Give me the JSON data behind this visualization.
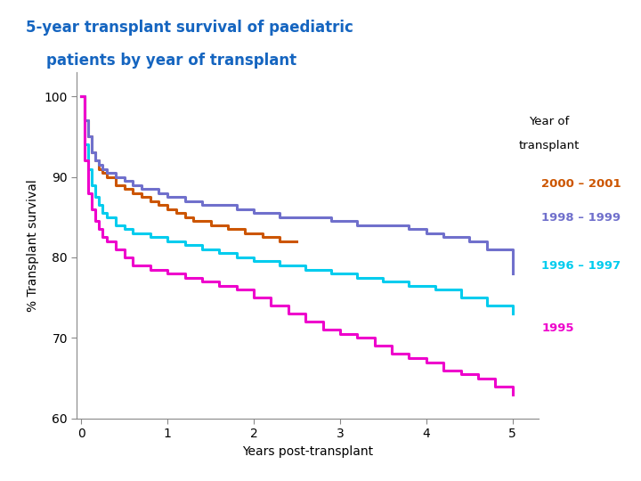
{
  "title_line1": "5-year transplant survival of paediatric",
  "title_line2": "    patients by year of transplant",
  "xlabel": "Years post-transplant",
  "ylabel": "% Transplant survival",
  "xlim": [
    -0.05,
    5.3
  ],
  "ylim": [
    60,
    103
  ],
  "yticks": [
    60,
    70,
    80,
    90,
    100
  ],
  "xticks": [
    0,
    1,
    2,
    3,
    4,
    5
  ],
  "title_color": "#1565C0",
  "background_color": "#ffffff",
  "navy_bar_color": "#2B3A8A",
  "legend_title": "Year of\ntransplant",
  "series": [
    {
      "label": "2000 – 2001",
      "color": "#cc5500",
      "x": [
        0,
        0.04,
        0.08,
        0.12,
        0.16,
        0.2,
        0.25,
        0.3,
        0.4,
        0.5,
        0.6,
        0.7,
        0.8,
        0.9,
        1.0,
        1.1,
        1.2,
        1.3,
        1.5,
        1.7,
        1.9,
        2.1,
        2.3,
        2.5
      ],
      "y": [
        100,
        97,
        95,
        93,
        92,
        91,
        90.5,
        90,
        89,
        88.5,
        88,
        87.5,
        87,
        86.5,
        86,
        85.5,
        85,
        84.5,
        84,
        83.5,
        83,
        82.5,
        82,
        82
      ]
    },
    {
      "label": "1998 – 1999",
      "color": "#7070CC",
      "x": [
        0,
        0.04,
        0.08,
        0.12,
        0.16,
        0.2,
        0.25,
        0.3,
        0.4,
        0.5,
        0.6,
        0.7,
        0.8,
        0.9,
        1.0,
        1.2,
        1.4,
        1.6,
        1.8,
        2.0,
        2.3,
        2.6,
        2.9,
        3.2,
        3.5,
        3.8,
        4.0,
        4.2,
        4.5,
        4.7,
        5.0
      ],
      "y": [
        100,
        97,
        95,
        93,
        92,
        91.5,
        91,
        90.5,
        90,
        89.5,
        89,
        88.5,
        88.5,
        88,
        87.5,
        87,
        86.5,
        86.5,
        86,
        85.5,
        85,
        85,
        84.5,
        84,
        84,
        83.5,
        83,
        82.5,
        82,
        81,
        78
      ]
    },
    {
      "label": "1996 – 1997",
      "color": "#00CCEE",
      "x": [
        0,
        0.04,
        0.08,
        0.12,
        0.16,
        0.2,
        0.25,
        0.3,
        0.4,
        0.5,
        0.6,
        0.8,
        1.0,
        1.2,
        1.4,
        1.6,
        1.8,
        2.0,
        2.3,
        2.6,
        2.9,
        3.2,
        3.5,
        3.8,
        4.1,
        4.4,
        4.7,
        5.0
      ],
      "y": [
        100,
        94,
        91,
        89,
        87.5,
        86.5,
        85.5,
        85,
        84,
        83.5,
        83,
        82.5,
        82,
        81.5,
        81,
        80.5,
        80,
        79.5,
        79,
        78.5,
        78,
        77.5,
        77,
        76.5,
        76,
        75,
        74,
        73
      ]
    },
    {
      "label": "1995",
      "color": "#EE00CC",
      "x": [
        0,
        0.04,
        0.08,
        0.12,
        0.16,
        0.2,
        0.25,
        0.3,
        0.4,
        0.5,
        0.6,
        0.8,
        1.0,
        1.2,
        1.4,
        1.6,
        1.8,
        2.0,
        2.2,
        2.4,
        2.6,
        2.8,
        3.0,
        3.2,
        3.4,
        3.6,
        3.8,
        4.0,
        4.2,
        4.4,
        4.6,
        4.8,
        5.0
      ],
      "y": [
        100,
        92,
        88,
        86,
        84.5,
        83.5,
        82.5,
        82,
        81,
        80,
        79,
        78.5,
        78,
        77.5,
        77,
        76.5,
        76,
        75,
        74,
        73,
        72,
        71,
        70.5,
        70,
        69,
        68,
        67.5,
        67,
        66,
        65.5,
        65,
        64,
        63
      ]
    }
  ]
}
